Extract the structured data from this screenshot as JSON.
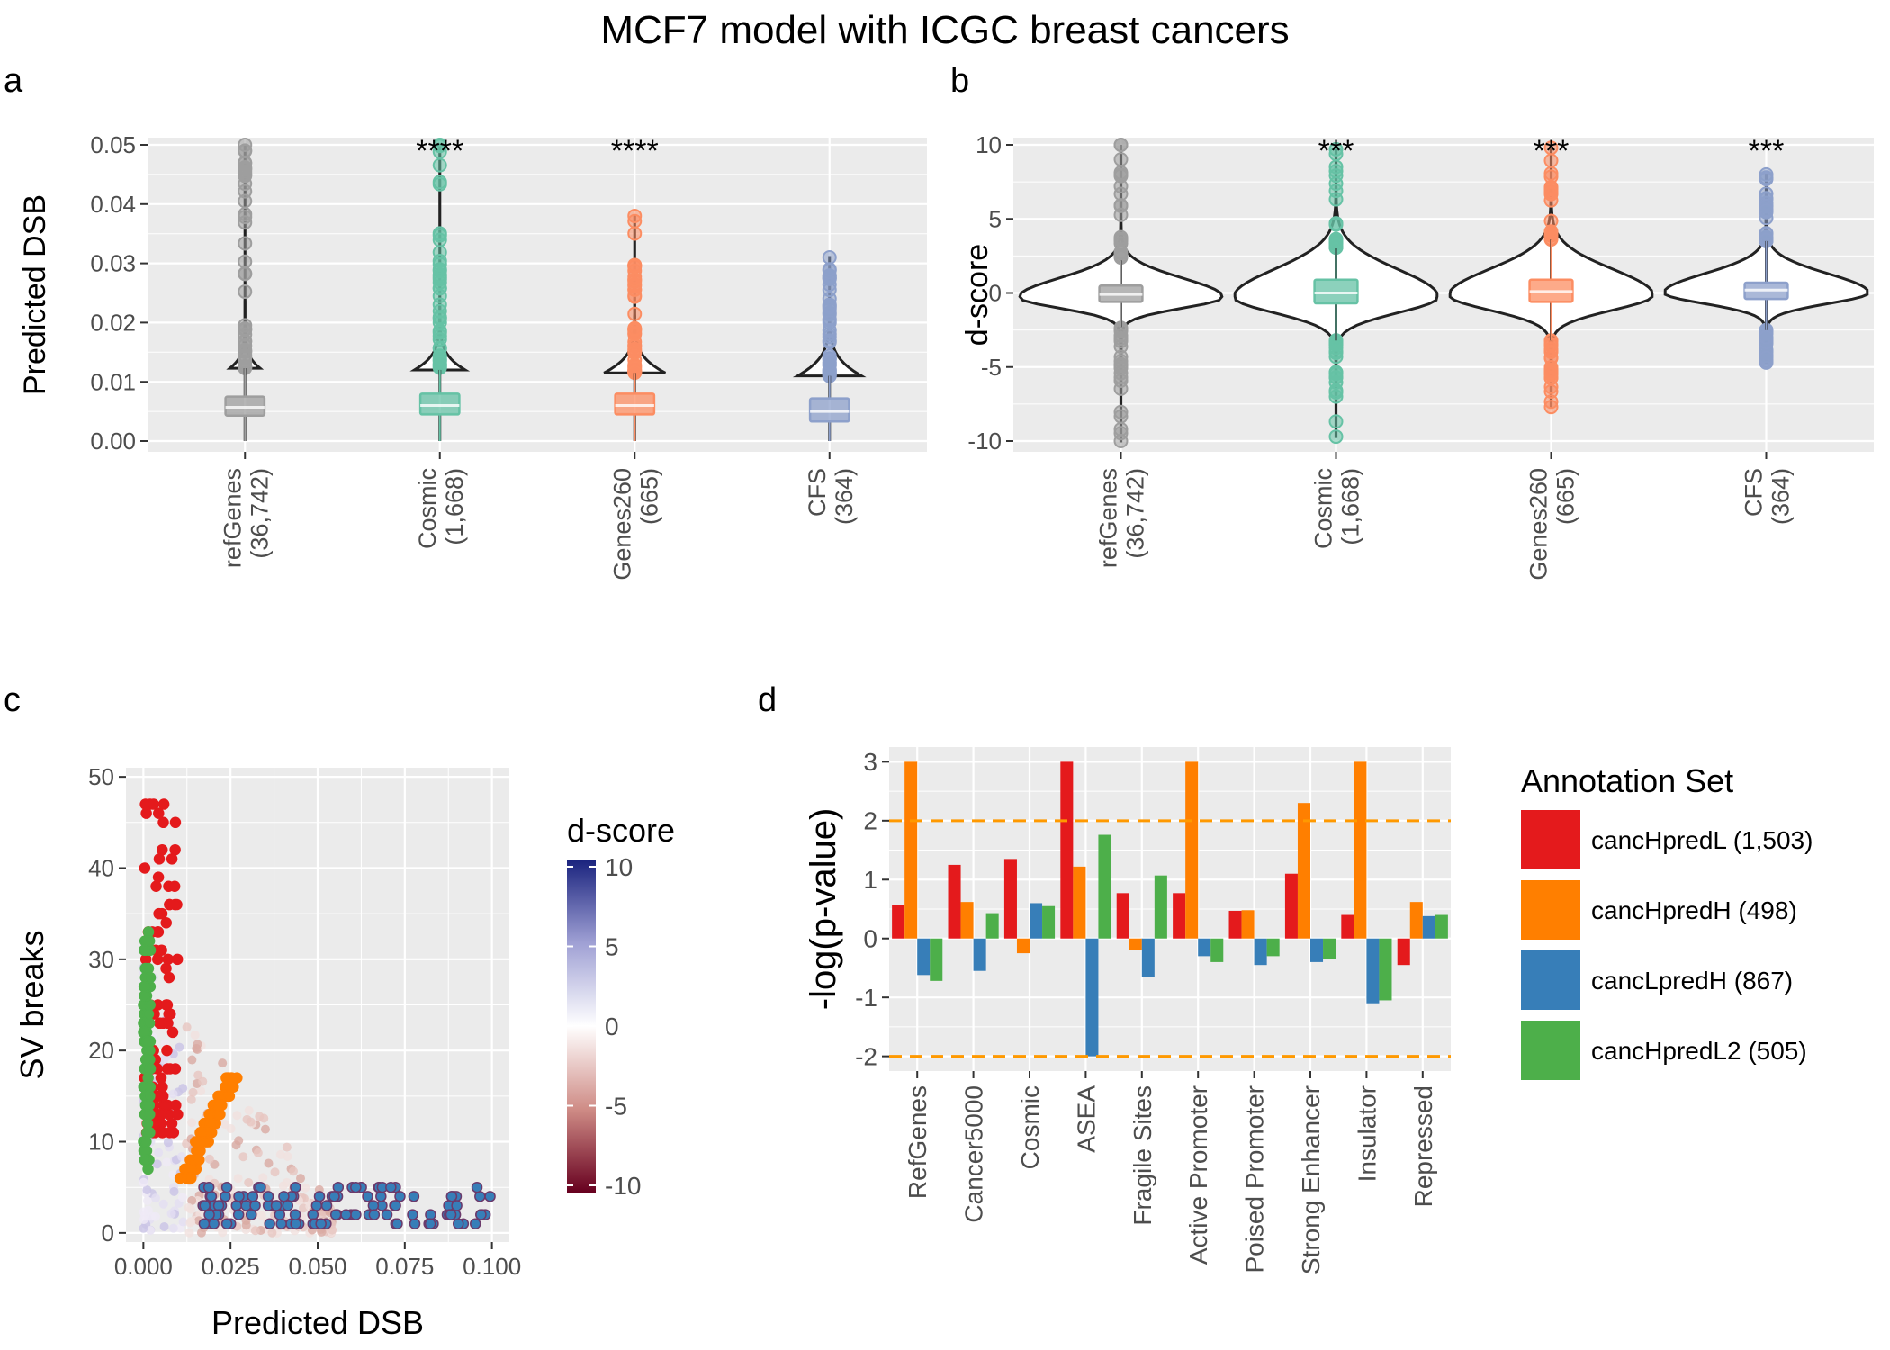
{
  "figure_title": "MCF7 model with ICGC breast cancers",
  "panel_labels": {
    "a": "a",
    "b": "b",
    "c": "c",
    "d": "d"
  },
  "colors": {
    "panel_bg": "#ebebeb",
    "grid": "#ffffff",
    "refGenes": "#9e9e9e",
    "Cosmic": "#66c2a5",
    "Genes260": "#fc8d62",
    "CFS": "#8da0cb",
    "cancHpredL": "#e41a1c",
    "cancHpredH": "#ff7f00",
    "cancLpredH": "#377eb8",
    "cancHpredL2": "#4daf4a",
    "threshold_line": "#ff9900",
    "dscore_low": "#67001f",
    "dscore_mid": "#ffffff",
    "dscore_high": "#1a237e"
  },
  "chart_data": [
    {
      "id": "a",
      "type": "violin",
      "ylabel": "Predicted DSB",
      "xlabel": "",
      "ylim": [
        0,
        0.05
      ],
      "yticks": [
        0.0,
        0.01,
        0.02,
        0.03,
        0.04,
        0.05
      ],
      "ytick_labels": [
        "0.00",
        "0.01",
        "0.02",
        "0.03",
        "0.04",
        "0.05"
      ],
      "grid": true,
      "categories": [
        {
          "name": "refGenes",
          "count": "(36,742)",
          "color_key": "refGenes",
          "signif": "",
          "q1": 0.0043,
          "median": 0.0057,
          "q3": 0.0075,
          "lower_whisker": 0.0,
          "upper_whisker": 0.0123,
          "outlier_range": [
            0.0123,
            0.05
          ]
        },
        {
          "name": "Cosmic",
          "count": "(1,668)",
          "color_key": "Cosmic",
          "signif": "****",
          "q1": 0.0045,
          "median": 0.006,
          "q3": 0.008,
          "lower_whisker": 0.0,
          "upper_whisker": 0.012,
          "outlier_range": [
            0.012,
            0.05
          ]
        },
        {
          "name": "Genes260",
          "count": "(665)",
          "color_key": "Genes260",
          "signif": "****",
          "q1": 0.0045,
          "median": 0.006,
          "q3": 0.008,
          "lower_whisker": 0.0,
          "upper_whisker": 0.0115,
          "outlier_range": [
            0.0115,
            0.038
          ]
        },
        {
          "name": "CFS",
          "count": "(364)",
          "color_key": "CFS",
          "signif": "",
          "q1": 0.0033,
          "median": 0.005,
          "q3": 0.0072,
          "lower_whisker": 0.0,
          "upper_whisker": 0.011,
          "outlier_range": [
            0.011,
            0.031
          ]
        }
      ]
    },
    {
      "id": "b",
      "type": "violin",
      "ylabel": "d-score",
      "xlabel": "",
      "ylim": [
        -10,
        10
      ],
      "yticks": [
        -10,
        -5,
        0,
        5,
        10
      ],
      "ytick_labels": [
        "-10",
        "-5",
        "0",
        "5",
        "10"
      ],
      "grid": true,
      "categories": [
        {
          "name": "refGenes",
          "count": "(36,742)",
          "color_key": "refGenes",
          "signif": "",
          "q1": -0.6,
          "median": -0.1,
          "q3": 0.5,
          "lower_whisker": -2.3,
          "upper_whisker": 2.2,
          "outlier_range": [
            -10,
            10
          ]
        },
        {
          "name": "Cosmic",
          "count": "(1,668)",
          "color_key": "Cosmic",
          "signif": "***",
          "q1": -0.7,
          "median": 0.0,
          "q3": 0.9,
          "lower_whisker": -3.2,
          "upper_whisker": 3.0,
          "outlier_range": [
            -9.7,
            9.7
          ]
        },
        {
          "name": "Genes260",
          "count": "(665)",
          "color_key": "Genes260",
          "signif": "***",
          "q1": -0.6,
          "median": 0.1,
          "q3": 0.9,
          "lower_whisker": -3.2,
          "upper_whisker": 3.6,
          "outlier_range": [
            -7.7,
            9.8
          ]
        },
        {
          "name": "CFS",
          "count": "(364)",
          "color_key": "CFS",
          "signif": "***",
          "q1": -0.4,
          "median": 0.2,
          "q3": 0.7,
          "lower_whisker": -2.5,
          "upper_whisker": 3.5,
          "outlier_range": [
            -4.7,
            8.0
          ]
        }
      ]
    },
    {
      "id": "c",
      "type": "scatter",
      "xlabel": "Predicted DSB",
      "ylabel": "SV breaks",
      "xlim": [
        -0.005,
        0.105
      ],
      "ylim": [
        -1,
        51
      ],
      "xticks": [
        0.0,
        0.025,
        0.05,
        0.075,
        0.1
      ],
      "xtick_labels": [
        "0.000",
        "0.025",
        "0.050",
        "0.075",
        "0.100"
      ],
      "yticks": [
        0,
        10,
        20,
        30,
        40,
        50
      ],
      "ytick_labels": [
        "0",
        "10",
        "20",
        "30",
        "40",
        "50"
      ],
      "grid": true,
      "colorbar": {
        "title": "d-score",
        "range": [
          -10,
          10
        ],
        "ticks": [
          10,
          5,
          0,
          -5,
          -10
        ],
        "tick_labels": [
          "10",
          "5",
          "0",
          "-5",
          "-10"
        ]
      },
      "highlight_groups": [
        {
          "color_key": "cancHpredL",
          "x_range": [
            0.0,
            0.01
          ],
          "y_range": [
            11,
            47
          ]
        },
        {
          "color_key": "cancHpredL2",
          "x_range": [
            0.0,
            0.002
          ],
          "y_range": [
            7,
            33
          ]
        },
        {
          "color_key": "cancHpredH",
          "x_range": [
            0.01,
            0.028
          ],
          "y_range": [
            6,
            17
          ]
        },
        {
          "color_key": "cancLpredH",
          "x_range": [
            0.017,
            0.1
          ],
          "y_range": [
            1,
            5
          ]
        }
      ]
    },
    {
      "id": "d",
      "type": "bar",
      "ylabel": "-log(p-value)",
      "xlabel": "",
      "ylim": [
        -2.25,
        3.25
      ],
      "yticks": [
        -2,
        -1,
        0,
        1,
        2,
        3
      ],
      "ytick_labels": [
        "-2",
        "-1",
        "0",
        "1",
        "2",
        "3"
      ],
      "thresholds": [
        2,
        -2
      ],
      "grid": true,
      "categories": [
        "RefGenes",
        "Cancer5000",
        "Cosmic",
        "ASEA",
        "Fragile Sites",
        "Active Promoter",
        "Poised Promoter",
        "Strong Enhancer",
        "Insulator",
        "Repressed"
      ],
      "legend_title": "Annotation Set",
      "legend_position": "right",
      "series": [
        {
          "name": "cancHpredL (1,503)",
          "color_key": "cancHpredL",
          "values": [
            0.57,
            1.25,
            1.35,
            3.0,
            0.77,
            0.77,
            0.47,
            1.1,
            0.4,
            -0.45
          ]
        },
        {
          "name": "cancHpredH (498)",
          "color_key": "cancHpredH",
          "values": [
            3.0,
            0.62,
            -0.25,
            1.22,
            -0.2,
            3.0,
            0.48,
            2.3,
            3.0,
            0.62
          ]
        },
        {
          "name": "cancLpredH (867)",
          "color_key": "cancLpredH",
          "values": [
            -0.62,
            -0.55,
            0.6,
            -2.0,
            -0.65,
            -0.3,
            -0.45,
            -0.4,
            -1.1,
            0.38
          ]
        },
        {
          "name": "cancHpredL2 (505)",
          "color_key": "cancHpredL2",
          "values": [
            -0.72,
            0.43,
            0.55,
            1.76,
            1.07,
            -0.4,
            -0.3,
            -0.35,
            -1.05,
            0.4
          ]
        }
      ]
    }
  ]
}
